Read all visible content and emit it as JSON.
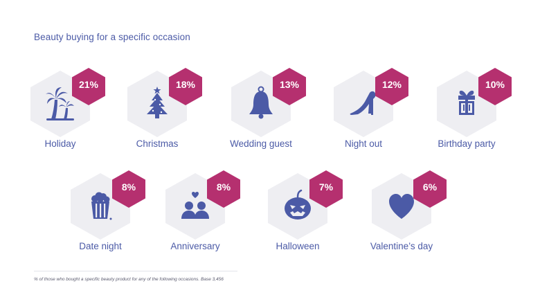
{
  "title": "Beauty buying for a specific occasion",
  "footnote": "% of those who bought a specific beauty product for any of the following occasions. Base 3,456",
  "colors": {
    "accent": "#b5306f",
    "icon": "#4b5aa6",
    "hexagon": "#eeeef2",
    "text": "#4b5aa6"
  },
  "chart_data": {
    "type": "table",
    "title": "Beauty buying for a specific occasion",
    "categories": [
      "Holiday",
      "Christmas",
      "Wedding guest",
      "Night out",
      "Birthday party",
      "Date night",
      "Anniversary",
      "Halloween",
      "Valentine's day"
    ],
    "values": [
      21,
      18,
      13,
      12,
      10,
      8,
      8,
      7,
      6
    ],
    "unit": "%",
    "items": [
      {
        "label": "Holiday",
        "value_label": "21%",
        "icon": "palm-tree-icon"
      },
      {
        "label": "Christmas",
        "value_label": "18%",
        "icon": "christmas-tree-icon"
      },
      {
        "label": "Wedding guest",
        "value_label": "13%",
        "icon": "bell-icon"
      },
      {
        "label": "Night out",
        "value_label": "12%",
        "icon": "high-heel-icon"
      },
      {
        "label": "Birthday party",
        "value_label": "10%",
        "icon": "gift-icon"
      },
      {
        "label": "Date night",
        "value_label": "8%",
        "icon": "popcorn-icon"
      },
      {
        "label": "Anniversary",
        "value_label": "8%",
        "icon": "couple-icon"
      },
      {
        "label": "Halloween",
        "value_label": "7%",
        "icon": "pumpkin-icon"
      },
      {
        "label": "Valentine’s day",
        "value_label": "6%",
        "icon": "heart-icon"
      }
    ]
  }
}
